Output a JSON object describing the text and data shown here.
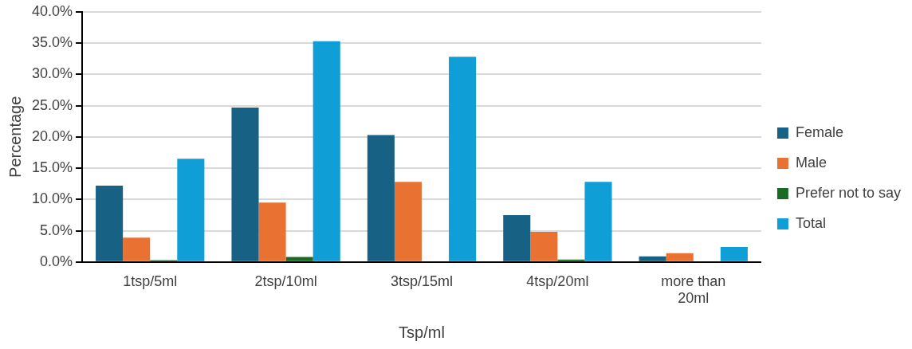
{
  "chart_data": {
    "type": "bar",
    "xlabel": "Tsp/ml",
    "ylabel": "Percentage",
    "categories": [
      "1tsp/5ml",
      "2tsp/10ml",
      "3tsp/15ml",
      "4tsp/20ml",
      "more than 20ml"
    ],
    "series": [
      {
        "name": "Female",
        "color": "#176184",
        "values": [
          12.2,
          24.7,
          20.3,
          7.5,
          0.9
        ]
      },
      {
        "name": "Male",
        "color": "#e97132",
        "values": [
          3.9,
          9.5,
          12.8,
          4.8,
          1.4
        ]
      },
      {
        "name": "Prefer not to say",
        "color": "#196b24",
        "values": [
          0.3,
          0.8,
          0,
          0.4,
          0
        ]
      },
      {
        "name": "Total",
        "color": "#0f9ed5",
        "values": [
          16.5,
          35.3,
          32.8,
          12.8,
          2.4
        ]
      }
    ],
    "ylim": [
      0,
      40
    ],
    "yticks": [
      {
        "value": 0,
        "label": "0.0%"
      },
      {
        "value": 5,
        "label": "5.0%"
      },
      {
        "value": 10,
        "label": "10.0%"
      },
      {
        "value": 15,
        "label": "15.0%"
      },
      {
        "value": 20,
        "label": "20.0%"
      },
      {
        "value": 25,
        "label": "25.0%"
      },
      {
        "value": 30,
        "label": "30.0%"
      },
      {
        "value": 35,
        "label": "35.0%"
      },
      {
        "value": 40,
        "label": "40.0%"
      }
    ],
    "grid": "y",
    "legend": "right"
  }
}
